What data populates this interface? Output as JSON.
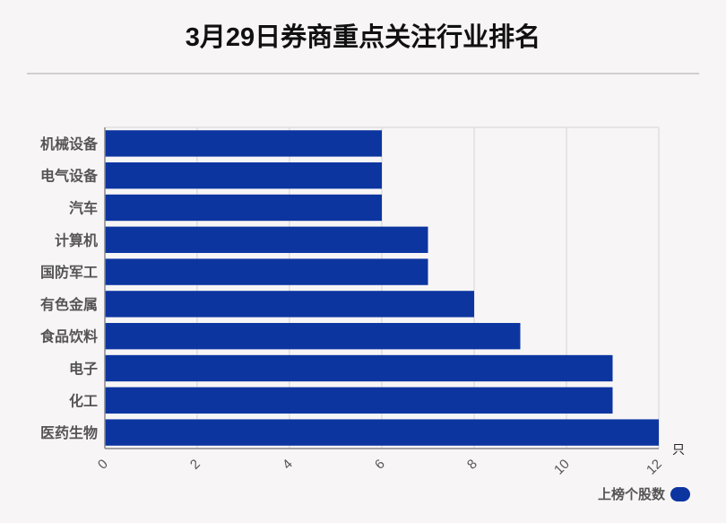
{
  "title": "3月29日券商重点关注行业排名",
  "chart_data": {
    "type": "bar",
    "orientation": "horizontal",
    "categories": [
      "机械设备",
      "电气设备",
      "汽车",
      "计算机",
      "国防军工",
      "有色金属",
      "食品饮料",
      "电子",
      "化工",
      "医药生物"
    ],
    "series": [
      {
        "name": "上榜个股数",
        "values": [
          6,
          6,
          6,
          7,
          7,
          8,
          9,
          11,
          11,
          12
        ]
      }
    ],
    "x_ticks": [
      "0",
      "2",
      "4",
      "6",
      "8",
      "10",
      "12"
    ],
    "xlim": [
      0,
      12
    ],
    "x_unit": "只",
    "grid": true,
    "legend_position": "bottom-right"
  },
  "colors": {
    "bar": "#0c35a0",
    "grid": "#d4d4d4",
    "axis": "#888888",
    "label": "#555555"
  }
}
